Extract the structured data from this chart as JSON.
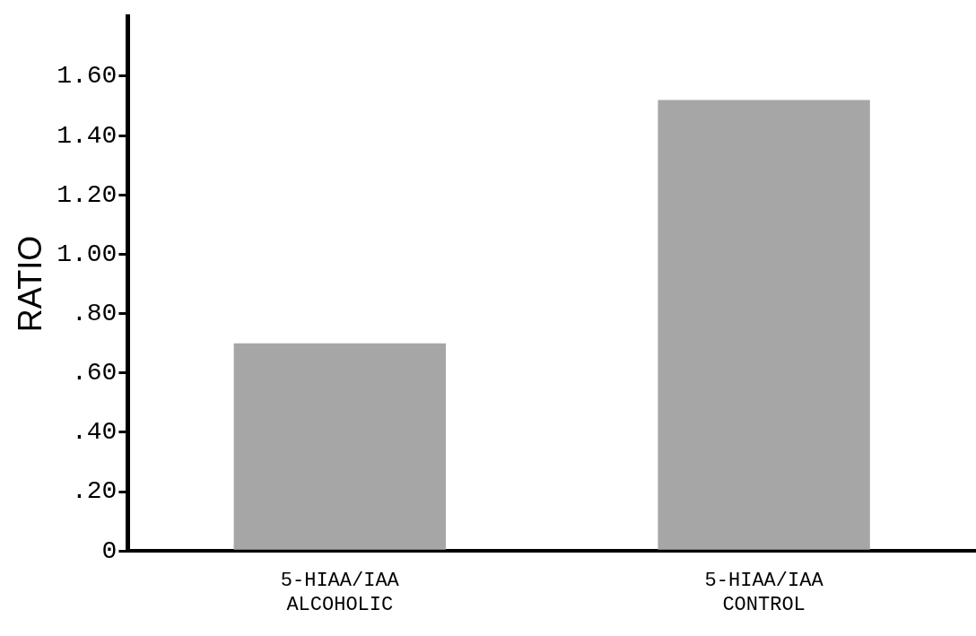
{
  "chart_data": {
    "type": "bar",
    "ylabel": "RATIO",
    "categories": [
      "5-HIAA/IAA\nALCOHOLIC",
      "5-HIAA/IAA\nCONTROL"
    ],
    "values": [
      0.7,
      1.52
    ],
    "color": "#a6a6a6",
    "ylim": [
      0,
      1.8
    ],
    "yticks": [
      0,
      {
        "value": 0.2,
        "label": ".20"
      },
      {
        "value": 0.4,
        "label": ".40"
      },
      {
        "value": 0.6,
        "label": ".60"
      },
      {
        "value": 0.8,
        "label": ".80"
      },
      {
        "value": 1.0,
        "label": "1.00"
      },
      {
        "value": 1.2,
        "label": "1.20"
      },
      {
        "value": 1.4,
        "label": "1.40"
      },
      {
        "value": 1.6,
        "label": "1.60"
      }
    ],
    "grid": false,
    "legend": false
  }
}
